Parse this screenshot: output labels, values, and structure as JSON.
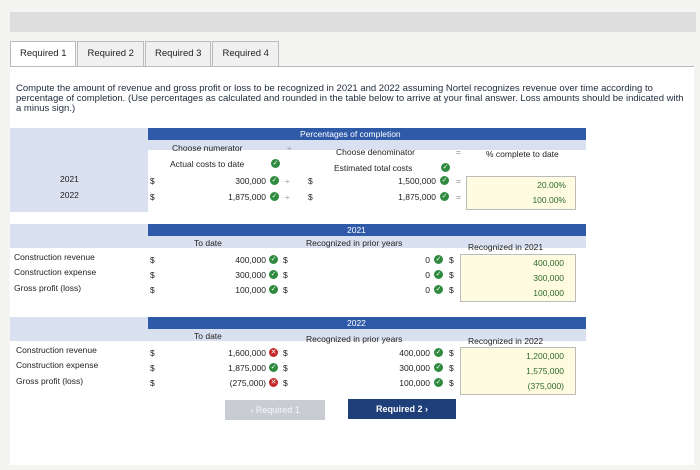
{
  "tabs": [
    "Required 1",
    "Required 2",
    "Required 3",
    "Required 4"
  ],
  "instructions": "Compute the amount of revenue and gross profit or loss to be recognized in 2021 and 2022 assuming Nortel recognizes revenue over time according to percentage of completion. (Use percentages as calculated and rounded in the table below to arrive at your final answer. Loss amounts should be indicated with a minus sign.)",
  "pct": {
    "header": "Percentages of completion",
    "numerator_label": "Choose numerator",
    "numerator_value": "Actual costs to date",
    "denominator_label": "Choose denominator",
    "denominator_value": "Estimated total costs",
    "div": "÷",
    "eq": "=",
    "complete_header": "% complete to date",
    "rows": [
      {
        "year": "2021",
        "num": "300,000",
        "den": "1,500,000",
        "pct": "20.00%"
      },
      {
        "year": "2022",
        "num": "1,875,000",
        "den": "1,875,000",
        "pct": "100.00%"
      }
    ]
  },
  "y2021": {
    "header": "2021",
    "to_date": "To date",
    "prior": "Recognized in prior years",
    "current": "Recognized in 2021",
    "rows": [
      {
        "label": "Construction revenue",
        "to_date": "400,000",
        "prior": "0",
        "current": "400,000"
      },
      {
        "label": "Construction expense",
        "to_date": "300,000",
        "prior": "0",
        "current": "300,000"
      },
      {
        "label": "Gross profit (loss)",
        "to_date": "100,000",
        "prior": "0",
        "current": "100,000"
      }
    ]
  },
  "y2022": {
    "header": "2022",
    "to_date": "To date",
    "prior": "Recognized in prior years",
    "current": "Recognized in 2022",
    "rows": [
      {
        "label": "Construction revenue",
        "to_date": "1,600,000",
        "prior": "400,000",
        "current": "1,200,000"
      },
      {
        "label": "Construction expense",
        "to_date": "1,875,000",
        "prior": "300,000",
        "current": "1,575,000"
      },
      {
        "label": "Gross profit (loss)",
        "to_date": "(275,000)",
        "prior": "100,000",
        "current": "(375,000)"
      }
    ]
  },
  "currency": "$",
  "buttons": {
    "prev": "Required 1",
    "next": "Required 2"
  }
}
